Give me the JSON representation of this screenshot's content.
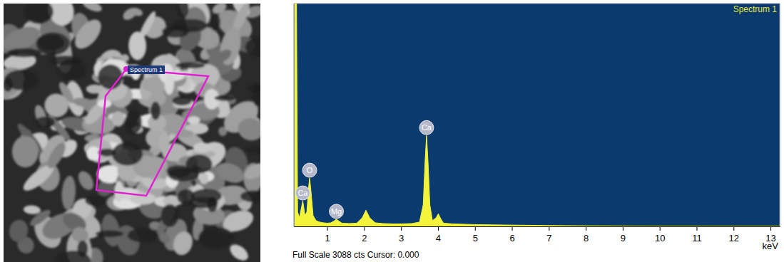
{
  "micrograph": {
    "region_label": "Spectrum 1"
  },
  "chart_data": {
    "type": "area",
    "title": "Spectrum 1",
    "footer": "Full Scale 3088 cts Cursor: 0.000",
    "x_label": "keV",
    "color": "#f4f43c",
    "x": [
      0.1,
      0.17,
      0.2,
      0.25,
      0.3,
      0.34,
      0.4,
      0.45,
      0.5,
      0.525,
      0.56,
      0.62,
      0.7,
      0.8,
      0.9,
      1.0,
      1.1,
      1.2,
      1.25,
      1.3,
      1.4,
      1.6,
      1.8,
      1.95,
      2.05,
      2.15,
      2.3,
      2.5,
      2.8,
      3.0,
      3.3,
      3.5,
      3.6,
      3.65,
      3.69,
      3.73,
      3.78,
      3.85,
      3.95,
      4.01,
      4.07,
      4.15,
      4.4,
      5.0,
      6.0,
      7.0,
      8.0,
      9.0,
      10.0,
      11.0,
      12.0,
      13.25
    ],
    "values": [
      3088,
      3088,
      200,
      120,
      250,
      355,
      150,
      200,
      550,
      670,
      500,
      150,
      80,
      60,
      50,
      45,
      50,
      80,
      100,
      80,
      45,
      40,
      45,
      120,
      225,
      120,
      50,
      40,
      35,
      35,
      40,
      60,
      300,
      900,
      1260,
      900,
      300,
      80,
      120,
      175,
      110,
      45,
      35,
      25,
      18,
      12,
      8,
      6,
      4,
      3,
      2,
      2
    ],
    "xlim": [
      0.1,
      13.25
    ],
    "xticks": [
      1,
      2,
      3,
      4,
      5,
      6,
      7,
      8,
      9,
      10,
      11,
      12,
      13
    ],
    "ylim": [
      0,
      3088
    ],
    "tick_labels": "x",
    "annotations": [
      {
        "text": "Ca",
        "x": 0.34,
        "y": 355
      },
      {
        "text": "O",
        "x": 0.525,
        "y": 670
      },
      {
        "text": "Mg",
        "x": 1.25,
        "y": 100
      },
      {
        "text": "Ca",
        "x": 3.69,
        "y": 1260
      }
    ]
  }
}
